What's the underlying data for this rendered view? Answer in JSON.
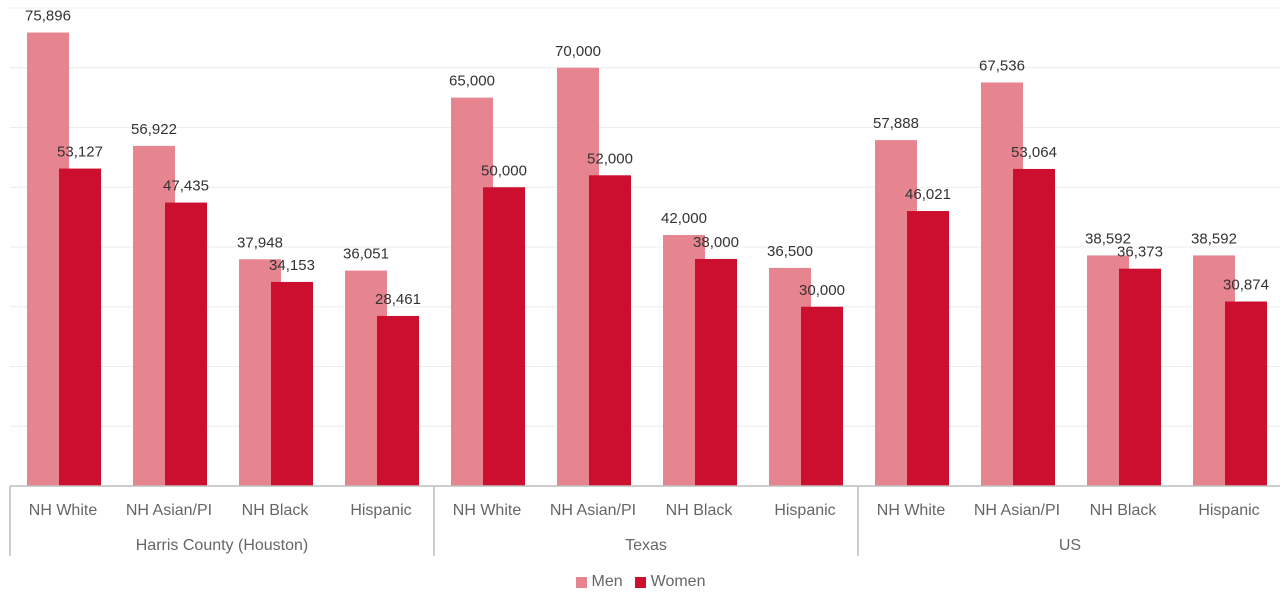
{
  "chart_data": {
    "type": "bar",
    "groups": [
      {
        "label": "Harris County (Houston)",
        "categories": [
          "NH White",
          "NH Asian/PI",
          "NH Black",
          "Hispanic"
        ]
      },
      {
        "label": "Texas",
        "categories": [
          "NH White",
          "NH Asian/PI",
          "NH Black",
          "Hispanic"
        ]
      },
      {
        "label": "US",
        "categories": [
          "NH White",
          "NH Asian/PI",
          "NH Black",
          "Hispanic"
        ]
      }
    ],
    "series": [
      {
        "name": "Men",
        "color": "#e6848f",
        "values": [
          75896,
          56922,
          37948,
          36051,
          65000,
          70000,
          42000,
          36500,
          57888,
          67536,
          38592,
          38592
        ],
        "labels": [
          "75,896",
          "56,922",
          "37,948",
          "36,051",
          "65,000",
          "70,000",
          "42,000",
          "36,500",
          "57,888",
          "67,536",
          "38,592",
          "38,592"
        ]
      },
      {
        "name": "Women",
        "color": "#cc0f2e",
        "values": [
          53127,
          47435,
          34153,
          28461,
          50000,
          52000,
          38000,
          30000,
          46021,
          53064,
          36373,
          30874
        ],
        "labels": [
          "53,127",
          "47,435",
          "34,153",
          "28,461",
          "50,000",
          "52,000",
          "38,000",
          "30,000",
          "46,021",
          "53,064",
          "36,373",
          "30,874"
        ]
      }
    ],
    "ylim": [
      0,
      80000
    ],
    "grid": true,
    "legend": "bottom-center"
  }
}
